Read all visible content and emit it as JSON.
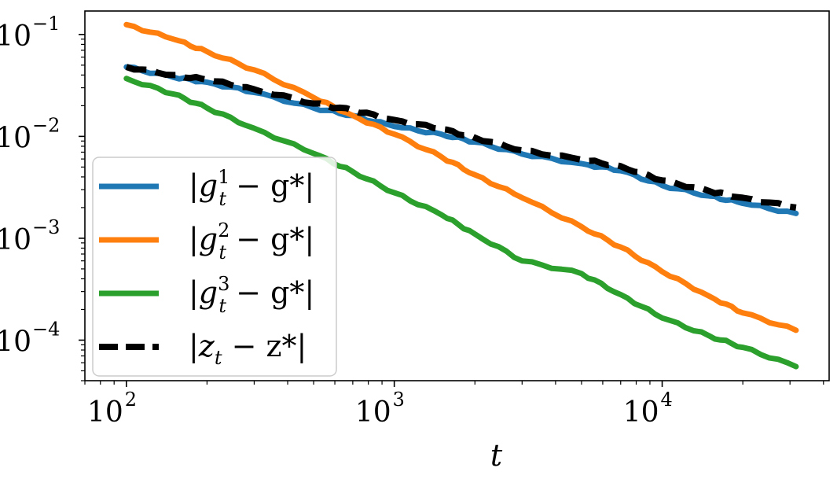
{
  "chart_data": {
    "type": "line",
    "title": "",
    "xlabel": "t",
    "ylabel": "",
    "xscale": "log",
    "yscale": "log",
    "xlim": [
      70,
      42000
    ],
    "ylim": [
      4e-05,
      0.17
    ],
    "x_ticks": [
      {
        "base": "10",
        "exp": "2",
        "value": 100
      },
      {
        "base": "10",
        "exp": "3",
        "value": 1000
      },
      {
        "base": "10",
        "exp": "4",
        "value": 10000
      }
    ],
    "y_ticks": [
      {
        "base": "10",
        "exp": "−1",
        "value": 0.1
      },
      {
        "base": "10",
        "exp": "−2",
        "value": 0.01
      },
      {
        "base": "10",
        "exp": "−3",
        "value": 0.001
      },
      {
        "base": "10",
        "exp": "−4",
        "value": 0.0001
      }
    ],
    "legend_position": "bottom-left",
    "x": [
      100,
      150,
      200,
      300,
      500,
      700,
      1000,
      1500,
      2000,
      3000,
      5000,
      7000,
      10000,
      15000,
      20000,
      31600
    ],
    "series": [
      {
        "name": "|g_t^1 − g^*|",
        "legend": {
          "main": "|g",
          "sup": "1",
          "sub": "t",
          "rest": " − g*|"
        },
        "color": "#1f77b4",
        "dash": "solid",
        "values": [
          0.048,
          0.038,
          0.034,
          0.027,
          0.019,
          0.016,
          0.0125,
          0.0105,
          0.0088,
          0.0067,
          0.0054,
          0.0046,
          0.0033,
          0.0026,
          0.0022,
          0.00175
        ]
      },
      {
        "name": "|g_t^2 − g^*|",
        "legend": {
          "main": "|g",
          "sup": "2",
          "sub": "t",
          "rest": " − g*|"
        },
        "color": "#ff7f0e",
        "dash": "solid",
        "values": [
          0.125,
          0.09,
          0.068,
          0.045,
          0.024,
          0.016,
          0.0105,
          0.0063,
          0.0042,
          0.0025,
          0.0013,
          0.00082,
          0.00047,
          0.00027,
          0.000185,
          0.000125
        ]
      },
      {
        "name": "|g_t^3 − g^*|",
        "legend": {
          "main": "|g",
          "sup": "3",
          "sub": "t",
          "rest": " − g*|"
        },
        "color": "#2ca02c",
        "dash": "solid",
        "values": [
          0.037,
          0.026,
          0.019,
          0.012,
          0.0068,
          0.0045,
          0.0028,
          0.0017,
          0.0011,
          0.0006,
          0.00045,
          0.00028,
          0.000165,
          0.00011,
          8.5e-05,
          5.5e-05
        ]
      },
      {
        "name": "|z_t − z^*|",
        "legend": {
          "main": "|z",
          "sup": "",
          "sub": "t",
          "rest": " − z*|"
        },
        "color": "#000000",
        "dash": "dashed",
        "values": [
          0.048,
          0.04,
          0.036,
          0.029,
          0.021,
          0.018,
          0.0145,
          0.0118,
          0.0097,
          0.0073,
          0.0059,
          0.0051,
          0.0037,
          0.0029,
          0.0025,
          0.002
        ]
      }
    ]
  }
}
